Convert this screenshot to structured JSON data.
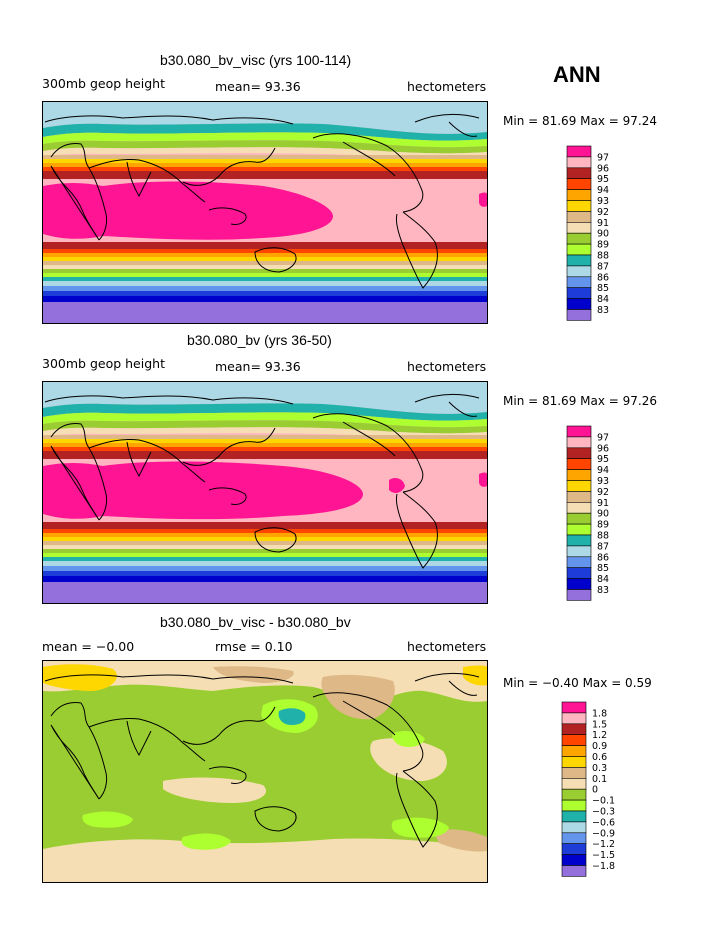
{
  "page": {
    "season": "ANN"
  },
  "panels": [
    {
      "title": "b30.080_bv_visc (yrs 100-114)",
      "left_label": "300mb geop height",
      "center_label": "mean=  93.36",
      "right_label": "hectometers",
      "min_max": "Min =  81.69 Max =  97.24"
    },
    {
      "title": "b30.080_bv (yrs 36-50)",
      "left_label": "300mb geop height",
      "center_label": "mean=  93.36",
      "right_label": "hectometers",
      "min_max": "Min =  81.69 Max =  97.26"
    },
    {
      "title": "b30.080_bv_visc - b30.080_bv",
      "left_label": "mean =  −0.00",
      "center_label": "rmse =    0.10",
      "right_label": "hectometers",
      "min_max": "Min =  −0.40 Max =    0.59"
    }
  ],
  "chart_data": [
    {
      "type": "heatmap",
      "title": "b30.080_bv_visc (yrs 100-114)",
      "variable": "300mb geop height",
      "units": "hectometers",
      "mean": 93.36,
      "min": 81.69,
      "max": 97.24,
      "legend_levels": [
        "97",
        "96",
        "95",
        "94",
        "93",
        "92",
        "91",
        "90",
        "89",
        "88",
        "87",
        "86",
        "85",
        "84",
        "83"
      ],
      "legend_colors": [
        "#ff1493",
        "#ffb6c1",
        "#b22222",
        "#ff4500",
        "#ffa500",
        "#ffd700",
        "#deb887",
        "#f5deb3",
        "#9acd32",
        "#adff2f",
        "#20b2aa",
        "#add8e6",
        "#6495ed",
        "#1e3cd7",
        "#0000cd",
        "#9370db"
      ]
    },
    {
      "type": "heatmap",
      "title": "b30.080_bv (yrs 36-50)",
      "variable": "300mb geop height",
      "units": "hectometers",
      "mean": 93.36,
      "min": 81.69,
      "max": 97.26,
      "legend_levels": [
        "97",
        "96",
        "95",
        "94",
        "93",
        "92",
        "91",
        "90",
        "89",
        "88",
        "87",
        "86",
        "85",
        "84",
        "83"
      ],
      "legend_colors": [
        "#ff1493",
        "#ffb6c1",
        "#b22222",
        "#ff4500",
        "#ffa500",
        "#ffd700",
        "#deb887",
        "#f5deb3",
        "#9acd32",
        "#adff2f",
        "#20b2aa",
        "#add8e6",
        "#6495ed",
        "#1e3cd7",
        "#0000cd",
        "#9370db"
      ]
    },
    {
      "type": "heatmap",
      "title": "b30.080_bv_visc - b30.080_bv",
      "units": "hectometers",
      "mean": -0.0,
      "rmse": 0.1,
      "min": -0.4,
      "max": 0.59,
      "legend_levels": [
        "1.8",
        "1.5",
        "1.2",
        "0.9",
        "0.6",
        "0.3",
        "0.1",
        "0",
        "−0.1",
        "−0.3",
        "−0.6",
        "−0.9",
        "−1.2",
        "−1.5",
        "−1.8"
      ],
      "legend_colors": [
        "#ff1493",
        "#ffb6c1",
        "#b22222",
        "#ff4500",
        "#ffa500",
        "#ffd700",
        "#deb887",
        "#f5deb3",
        "#9acd32",
        "#adff2f",
        "#20b2aa",
        "#add8e6",
        "#6495ed",
        "#1e3cd7",
        "#0000cd",
        "#9370db"
      ]
    }
  ]
}
